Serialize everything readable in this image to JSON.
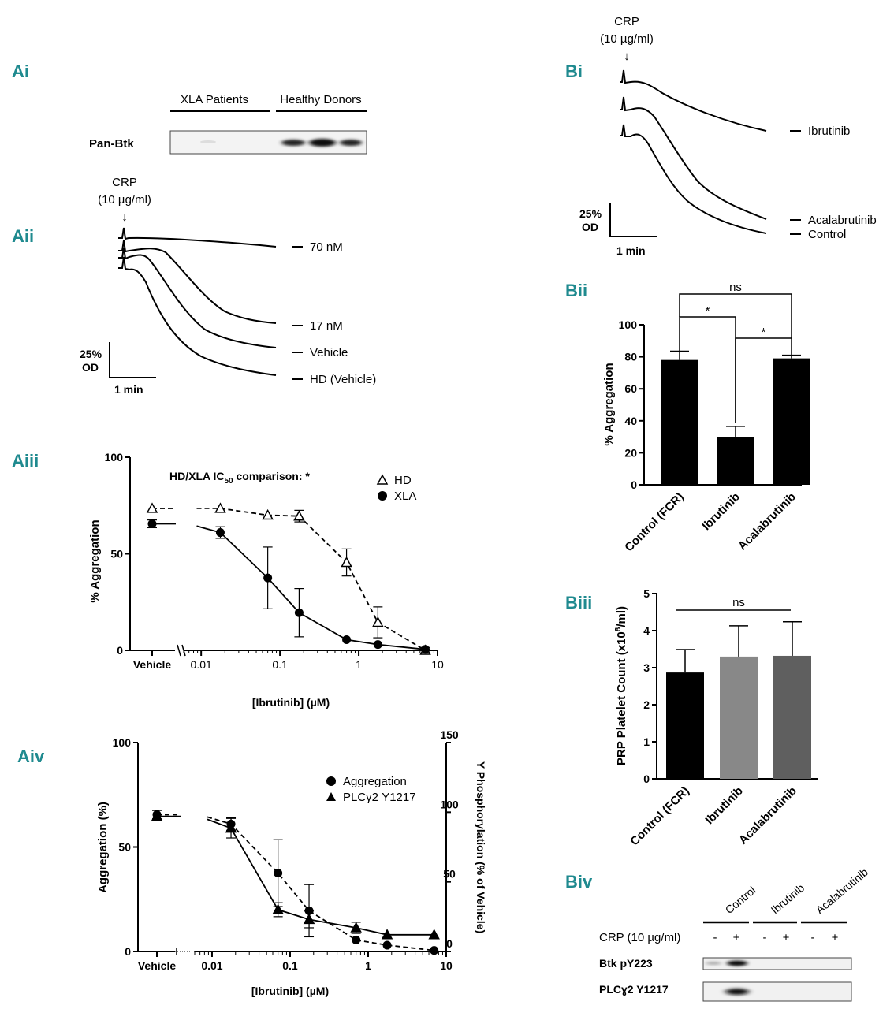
{
  "panel_labels": {
    "ai": "Ai",
    "aii": "Aii",
    "aiii": "Aiii",
    "aiv": "Aiv",
    "bi": "Bi",
    "bii": "Bii",
    "biii": "Biii",
    "biv": "Biv"
  },
  "ai": {
    "group1": "XLA Patients",
    "group2": "Healthy Donors",
    "row_label": "Pan-Btk"
  },
  "aii": {
    "stim_line1": "CRP",
    "stim_line2": "(10 µg/ml)",
    "arrow": "↓",
    "labels": [
      "70 nM",
      "17 nM",
      "Vehicle",
      "HD (Vehicle)"
    ],
    "scale_y_line1": "25%",
    "scale_y_line2": "OD",
    "scale_x": "1 min"
  },
  "bi": {
    "stim_line1": "CRP",
    "stim_line2": "(10 µg/ml)",
    "arrow": "↓",
    "labels": [
      "Ibrutinib",
      "Acalabrutinib",
      "Control"
    ],
    "scale_y_line1": "25%",
    "scale_y_line2": "OD",
    "scale_x": "1 min"
  },
  "chart_data": [
    {
      "id": "aiii",
      "type": "line",
      "title": "HD/XLA IC",
      "title_sub": "50",
      "title_tail": " comparison: *",
      "xlabel": "[Ibrutinib] (µM)",
      "ylabel": "% Aggregation",
      "xscale": "log",
      "xlim": [
        0.006,
        10
      ],
      "ylim": [
        0,
        100
      ],
      "yticks": [
        "0",
        "50",
        "100"
      ],
      "xticks": [
        {
          "v": 0.01,
          "label": "0.01"
        },
        {
          "v": 0.1,
          "label": "0.1"
        },
        {
          "v": 1,
          "label": "1"
        },
        {
          "v": 10,
          "label": "10"
        }
      ],
      "vehicle_label": "Vehicle",
      "series": [
        {
          "name": "HD",
          "marker": "triangle-open",
          "style": "dashed",
          "vehicle": {
            "y": 73.5,
            "err": 0
          },
          "x": [
            0.0175,
            0.07,
            0.175,
            0.7,
            1.75,
            7
          ],
          "y": [
            73.5,
            70,
            69.5,
            45.5,
            14.5,
            0
          ],
          "err": [
            0,
            0,
            3,
            7,
            8,
            1.5
          ]
        },
        {
          "name": "XLA",
          "marker": "circle",
          "style": "solid",
          "vehicle": {
            "y": 65.5,
            "err": 2
          },
          "x": [
            0.0175,
            0.07,
            0.175,
            0.7,
            1.75,
            7
          ],
          "y": [
            61,
            37.5,
            19.5,
            5.5,
            3,
            0.5
          ],
          "err": [
            3,
            16,
            12.5,
            0,
            0,
            0
          ]
        }
      ],
      "legend_position": "top-right"
    },
    {
      "id": "aiv",
      "type": "line",
      "xlabel": "[Ibrutinib] (µM)",
      "ylabel": "Aggregation (%)",
      "y2label": "Y Phosphorylation (% of Vehicle)",
      "xscale": "log",
      "xlim": [
        0.006,
        10
      ],
      "ylim": [
        0,
        100
      ],
      "y2lim": [
        0,
        150
      ],
      "yticks": [
        "0",
        "50",
        "100"
      ],
      "y2ticks": [
        "0",
        "50",
        "100",
        "150"
      ],
      "xticks": [
        {
          "v": 0.01,
          "label": "0.01"
        },
        {
          "v": 0.1,
          "label": "0.1"
        },
        {
          "v": 1,
          "label": "1"
        },
        {
          "v": 10,
          "label": "10"
        }
      ],
      "vehicle_label": "Vehicle",
      "series": [
        {
          "name": "Aggregation",
          "marker": "circle",
          "style": "dashed",
          "axis": "left",
          "vehicle": {
            "y": 65.5,
            "err": 2
          },
          "x": [
            0.0175,
            0.07,
            0.175,
            0.7,
            1.75,
            7
          ],
          "y": [
            61,
            37.5,
            19.5,
            5.5,
            3,
            0.5
          ],
          "err": [
            3,
            16,
            12.5,
            0,
            0,
            0
          ]
        },
        {
          "name": "PLCγ2 Y1217",
          "marker": "triangle",
          "style": "solid",
          "axis": "right",
          "vehicle": {
            "y": 97,
            "err": 0
          },
          "x": [
            0.0175,
            0.07,
            0.175,
            0.7,
            1.75,
            7
          ],
          "y": [
            88.5,
            30,
            23,
            17,
            12,
            12
          ],
          "err": [
            7,
            5,
            6,
            4,
            0,
            0
          ]
        }
      ],
      "legend_position": "top-right"
    },
    {
      "id": "bii",
      "type": "bar",
      "categories": [
        "Control (FCR)",
        "Ibrutinib",
        "Acalabrutinib"
      ],
      "values": [
        78,
        30,
        79
      ],
      "errors": [
        5.5,
        6.5,
        2
      ],
      "colors": [
        "#000000",
        "#000000",
        "#000000"
      ],
      "ylabel": "% Aggregation",
      "ylim": [
        0,
        100
      ],
      "yticks": [
        "0",
        "20",
        "40",
        "60",
        "80",
        "100"
      ],
      "significance": [
        {
          "from": 0,
          "to": 1,
          "label": "*"
        },
        {
          "from": 1,
          "to": 2,
          "label": "*"
        },
        {
          "from": 0,
          "to": 2,
          "label": "ns"
        }
      ]
    },
    {
      "id": "biii",
      "type": "bar",
      "categories": [
        "Control (FCR)",
        "Ibrutinib",
        "Acalabrutinib"
      ],
      "values": [
        2.87,
        3.3,
        3.32
      ],
      "errors": [
        0.62,
        0.83,
        0.92
      ],
      "colors": [
        "#000000",
        "#888888",
        "#5f5f5f"
      ],
      "ylabel": "PRP Platelet Count (x10",
      "ylabel_sup": "8",
      "ylabel_tail": "/ml)",
      "ylim": [
        0,
        5
      ],
      "yticks": [
        "0",
        "1",
        "2",
        "3",
        "4",
        "5"
      ],
      "significance_label": "ns"
    }
  ],
  "biv": {
    "columns": [
      "Control",
      "Ibrutinib",
      "Acalabrutinib"
    ],
    "stim_label": "CRP (10 µg/ml)",
    "signs": [
      "-",
      "+",
      "-",
      "+",
      "-",
      "+"
    ],
    "rows": [
      "Btk pY223",
      "PLCɣ2 Y1217"
    ]
  }
}
